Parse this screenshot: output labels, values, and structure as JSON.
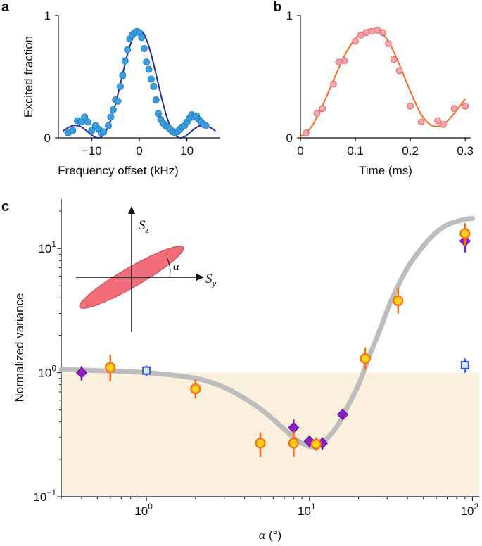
{
  "panels": {
    "a_letter": "a",
    "b_letter": "b",
    "c_letter": "c"
  },
  "colors": {
    "a_fit": "#1f2fa0",
    "a_points": "#3a9fe0",
    "b_fit": "#ff6a1a",
    "b_points_fill": "#f7a6a8",
    "b_points_stroke": "#e06070",
    "c_fit": "#bdbdbd",
    "c_shade": "#fbf0de",
    "c_diamond": "#8a1ec8",
    "c_circle_fill": "#ffd21a",
    "c_circle_stroke": "#ff6a10",
    "c_square": "#3557e6",
    "ellipse": "#f26d7a"
  },
  "chart_data": [
    {
      "type": "scatter",
      "panel": "a",
      "xlabel": "Frequency offset (kHz)",
      "ylabel": "Excited fraction",
      "xlim": [
        -17,
        17
      ],
      "ylim": [
        0,
        1
      ],
      "xticks": [
        -10,
        0,
        10
      ],
      "xtick_labels": [
        "−10",
        "0",
        "10"
      ],
      "yticks": [
        0,
        1
      ],
      "ytick_labels": [
        "0",
        "1"
      ],
      "series": [
        {
          "kind": "points",
          "x": [
            -15,
            -14,
            -13,
            -12.2,
            -11.5,
            -10.8,
            -10,
            -9.2,
            -8.5,
            -8,
            -7.5,
            -6.5,
            -6,
            -5.5,
            -5,
            -4.5,
            -4,
            -3.5,
            -3,
            -2.5,
            -2,
            -1.5,
            -1,
            -0.5,
            0,
            0.5,
            1,
            1.5,
            2,
            2.5,
            3,
            3.5,
            4,
            4.5,
            5,
            5.5,
            6,
            6.5,
            7,
            7.5,
            8,
            8.5,
            9,
            9.5,
            10,
            10.5,
            11,
            11.5,
            12,
            12.5,
            13,
            13.5,
            14
          ],
          "y": [
            0.04,
            0.06,
            0.14,
            0.13,
            0.17,
            0.13,
            0.06,
            0.1,
            0.07,
            0.04,
            0.05,
            0.1,
            0.17,
            0.23,
            0.31,
            0.3,
            0.42,
            0.51,
            0.63,
            0.72,
            0.81,
            0.84,
            0.86,
            0.87,
            0.86,
            0.82,
            0.73,
            0.62,
            0.56,
            0.48,
            0.42,
            0.31,
            0.2,
            0.15,
            0.12,
            0.1,
            0.09,
            0.07,
            0.05,
            0.04,
            0.05,
            0.07,
            0.09,
            0.1,
            0.13,
            0.16,
            0.19,
            0.17,
            0.18,
            0.15,
            0.13,
            0.11,
            0.1
          ]
        },
        {
          "kind": "fit",
          "model": "rabi_sinc",
          "center": 0,
          "peak": 0.88
        }
      ]
    },
    {
      "type": "scatter",
      "panel": "b",
      "xlabel": "Time (ms)",
      "ylabel": "",
      "xlim": [
        0,
        0.31
      ],
      "ylim": [
        0,
        1
      ],
      "xticks": [
        0,
        0.1,
        0.2,
        0.3
      ],
      "xtick_labels": [
        "0",
        "0.1",
        "0.2",
        "0.3"
      ],
      "yticks": [
        0,
        1
      ],
      "ytick_labels": [
        "0",
        "1"
      ],
      "series": [
        {
          "kind": "points",
          "x": [
            0.01,
            0.03,
            0.04,
            0.06,
            0.07,
            0.08,
            0.1,
            0.11,
            0.12,
            0.13,
            0.14,
            0.15,
            0.16,
            0.17,
            0.18,
            0.2,
            0.22,
            0.25,
            0.26,
            0.28,
            0.3
          ],
          "y": [
            0.04,
            0.2,
            0.24,
            0.44,
            0.62,
            0.63,
            0.79,
            0.84,
            0.86,
            0.87,
            0.88,
            0.86,
            0.77,
            0.64,
            0.55,
            0.26,
            0.13,
            0.14,
            0.11,
            0.24,
            0.26
          ]
        },
        {
          "kind": "fit",
          "x": [
            0.0,
            0.02,
            0.04,
            0.06,
            0.08,
            0.1,
            0.12,
            0.14,
            0.16,
            0.18,
            0.2,
            0.22,
            0.24,
            0.26,
            0.28,
            0.3
          ],
          "y": [
            0.01,
            0.09,
            0.26,
            0.47,
            0.67,
            0.81,
            0.88,
            0.88,
            0.79,
            0.6,
            0.38,
            0.19,
            0.1,
            0.11,
            0.2,
            0.32
          ]
        }
      ]
    },
    {
      "type": "scatter",
      "panel": "c",
      "xlabel": "α (°)",
      "ylabel": "Normalized variance",
      "xscale": "log",
      "yscale": "log",
      "xlim": [
        0.3,
        110
      ],
      "ylim": [
        0.1,
        25
      ],
      "xtick_labels": [
        {
          "base": "10",
          "exp": "0",
          "value": 1
        },
        {
          "base": "10",
          "exp": "1",
          "value": 10
        },
        {
          "base": "10",
          "exp": "2",
          "value": 100
        }
      ],
      "ytick_labels": [
        {
          "base": "10",
          "exp": "−1",
          "value": 0.1
        },
        {
          "base": "10",
          "exp": "0",
          "value": 1
        },
        {
          "base": "10",
          "exp": "1",
          "value": 10
        }
      ],
      "shaded_below": 1.0,
      "series": [
        {
          "kind": "fit",
          "x": [
            0.3,
            0.5,
            1,
            2,
            3,
            4,
            5,
            6,
            7,
            8,
            9,
            10,
            11,
            12,
            13,
            15,
            17,
            20,
            23,
            27,
            32,
            40,
            50,
            60,
            70,
            80,
            90,
            100
          ],
          "y": [
            1.06,
            1.04,
            1.0,
            0.9,
            0.76,
            0.62,
            0.51,
            0.42,
            0.35,
            0.3,
            0.27,
            0.255,
            0.255,
            0.27,
            0.3,
            0.38,
            0.52,
            0.8,
            1.3,
            2.2,
            3.9,
            7.0,
            10.5,
            13.5,
            15.5,
            16.5,
            17.2,
            17.5
          ]
        },
        {
          "kind": "diamond",
          "x": [
            0.4,
            8,
            10,
            12,
            16,
            90
          ],
          "y": [
            1.0,
            0.36,
            0.28,
            0.27,
            0.46,
            11.5
          ],
          "yerr_lo": [
            0.86,
            0.31,
            0.25,
            0.24,
            0.42,
            9.3
          ],
          "yerr_hi": [
            1.13,
            0.42,
            0.31,
            0.3,
            0.51,
            13.5
          ]
        },
        {
          "kind": "circle",
          "x": [
            0.6,
            2,
            5,
            8,
            11,
            22,
            35,
            90
          ],
          "y": [
            1.1,
            0.74,
            0.27,
            0.27,
            0.265,
            1.3,
            3.8,
            13.2
          ],
          "yerr_lo": [
            0.85,
            0.62,
            0.21,
            0.21,
            0.235,
            1.05,
            3.0,
            10.5
          ],
          "yerr_hi": [
            1.4,
            0.88,
            0.33,
            0.34,
            0.3,
            1.6,
            4.8,
            16.0
          ]
        },
        {
          "kind": "square",
          "x": [
            1.0,
            90
          ],
          "y": [
            1.04,
            1.15
          ],
          "yerr_lo": [
            0.94,
            1.0
          ],
          "yerr_hi": [
            1.14,
            1.3
          ]
        }
      ],
      "inset": {
        "z_label_base": "S",
        "z_label_sub": "z",
        "y_label_base": "S",
        "y_label_sub": "y",
        "angle_label": "α"
      }
    }
  ]
}
